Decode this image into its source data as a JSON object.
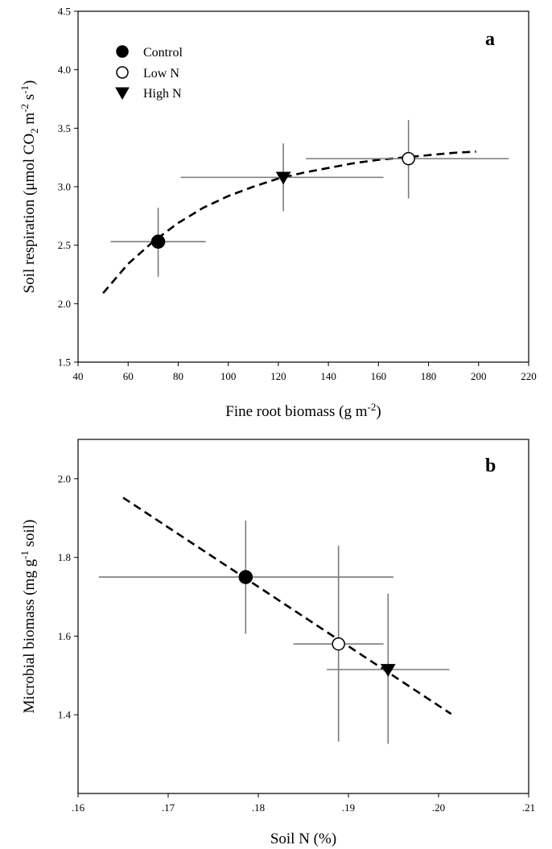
{
  "legend": {
    "items": [
      {
        "label": "Control",
        "marker": "filled-circle"
      },
      {
        "label": "Low N",
        "marker": "open-circle"
      },
      {
        "label": "High N",
        "marker": "filled-triangle-down"
      }
    ]
  },
  "chart_data": [
    {
      "type": "scatter",
      "panel_label": "a",
      "xlabel": "Fine root biomass (g m^-2)",
      "ylabel": "Soil respiration (μmol CO2 m^-2 s^-1)",
      "xlim": [
        40,
        220
      ],
      "ylim": [
        1.5,
        4.5
      ],
      "x_ticks": [
        "40",
        "60",
        "80",
        "100",
        "120",
        "140",
        "160",
        "180",
        "200",
        "220"
      ],
      "y_ticks": [
        "1.5",
        "2.0",
        "2.5",
        "3.0",
        "3.5",
        "4.0",
        "4.5"
      ],
      "grid": false,
      "legend_position": "top-left",
      "series": [
        {
          "name": "Control",
          "x": 72,
          "y": 2.53,
          "x_err": [
            53,
            91
          ],
          "y_err": [
            2.23,
            2.82
          ]
        },
        {
          "name": "Low N",
          "x": 172,
          "y": 3.24,
          "x_err": [
            131,
            212
          ],
          "y_err": [
            2.9,
            3.57
          ]
        },
        {
          "name": "High N",
          "x": 122,
          "y": 3.08,
          "x_err": [
            81,
            162
          ],
          "y_err": [
            2.79,
            3.37
          ]
        }
      ],
      "fit_line": {
        "style": "dashed",
        "x": [
          50,
          60,
          70,
          80,
          90,
          100,
          110,
          120,
          130,
          140,
          150,
          160,
          170,
          180,
          190,
          199
        ],
        "y": [
          2.09,
          2.34,
          2.53,
          2.69,
          2.82,
          2.92,
          3.0,
          3.07,
          3.12,
          3.16,
          3.2,
          3.23,
          3.25,
          3.27,
          3.29,
          3.3
        ]
      }
    },
    {
      "type": "scatter",
      "panel_label": "b",
      "xlabel": "Soil N (%)",
      "ylabel": "Microbial biomass (mg g^-1 soil)",
      "xlim": [
        0.16,
        0.21
      ],
      "ylim": [
        1.2,
        2.1
      ],
      "x_ticks": [
        ".16",
        ".17",
        ".18",
        ".19",
        ".20",
        ".21"
      ],
      "y_ticks": [
        "1.4",
        "1.6",
        "1.8",
        "2.0"
      ],
      "grid": false,
      "series": [
        {
          "name": "Control",
          "x": 0.1786,
          "y": 1.75,
          "x_err": [
            0.1623,
            0.195
          ],
          "y_err": [
            1.606,
            1.894
          ]
        },
        {
          "name": "Low N",
          "x": 0.1889,
          "y": 1.58,
          "x_err": [
            0.1839,
            0.1939
          ],
          "y_err": [
            1.332,
            1.83
          ]
        },
        {
          "name": "High N",
          "x": 0.1944,
          "y": 1.515,
          "x_err": [
            0.1876,
            0.2012
          ],
          "y_err": [
            1.326,
            1.708
          ]
        }
      ],
      "fit_line": {
        "style": "dashed",
        "x": [
          0.165,
          0.2014
        ],
        "y": [
          1.952,
          1.402
        ]
      }
    }
  ]
}
